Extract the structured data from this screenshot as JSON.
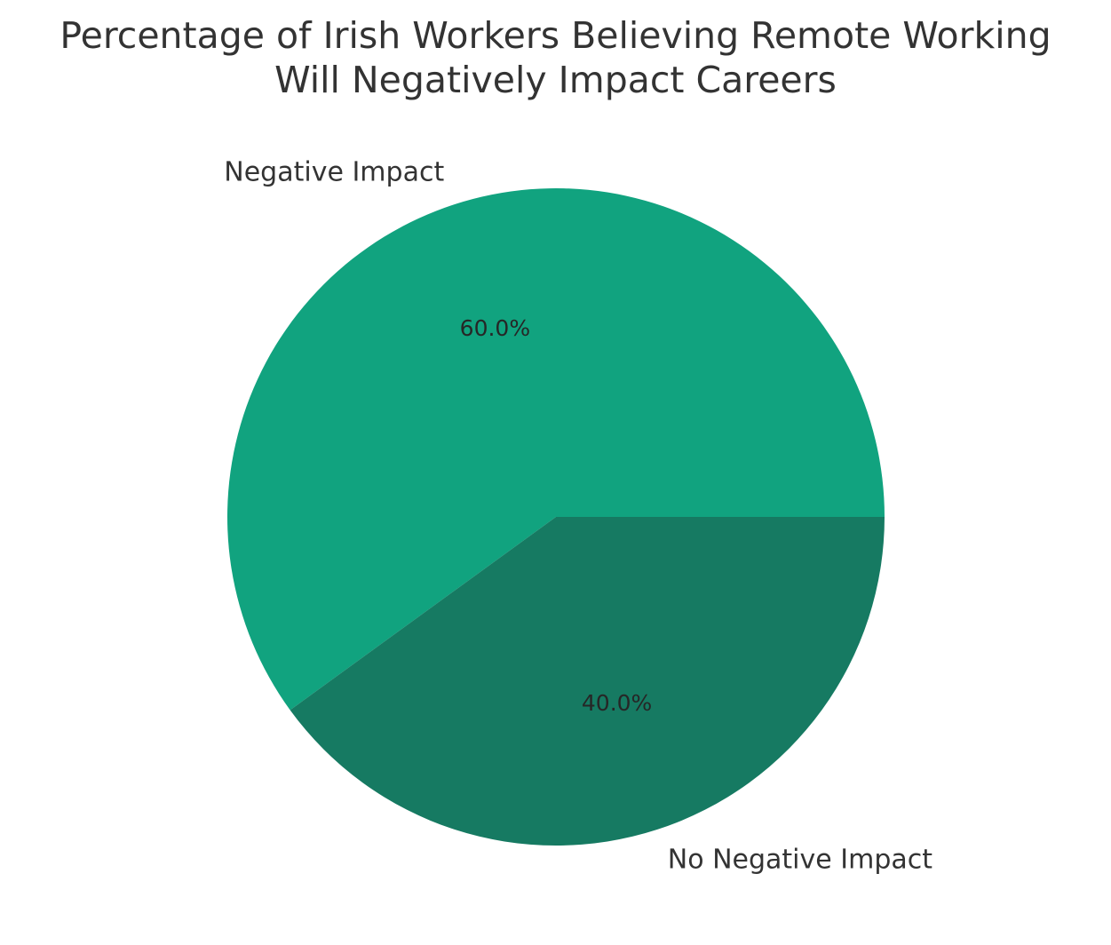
{
  "chart_data": {
    "type": "pie",
    "title": "Percentage of Irish Workers Believing Remote Working Will Negatively Impact Careers",
    "title_lines": [
      "Percentage of Irish Workers Believing Remote Working",
      "Will Negatively Impact Careers"
    ],
    "categories": [
      "Negative Impact",
      "No Negative Impact"
    ],
    "values": [
      60,
      40
    ],
    "percent_labels": [
      "60.0%",
      "40.0%"
    ],
    "colors": [
      "#11a37f",
      "#167a62"
    ],
    "start_angle_deg": 0,
    "direction": "counterclockwise",
    "legend": "none"
  }
}
